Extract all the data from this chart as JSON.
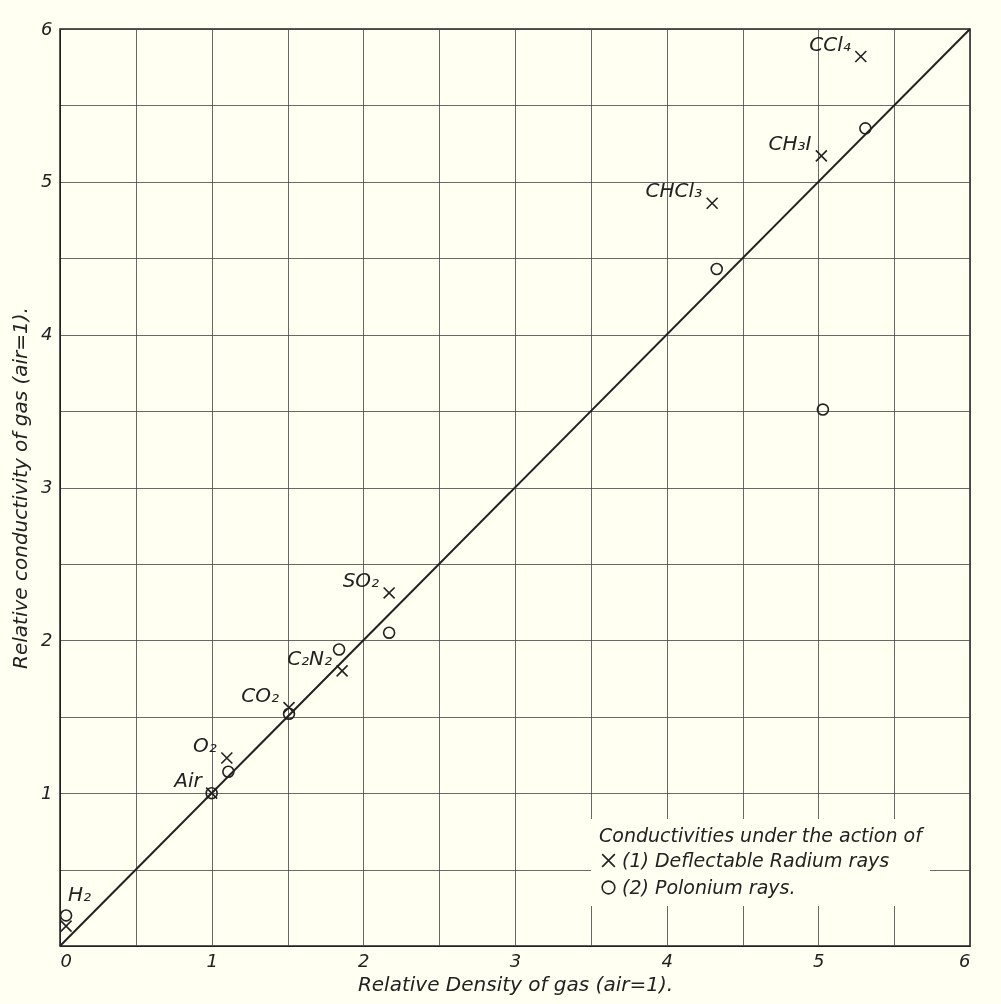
{
  "chart_data": {
    "type": "scatter",
    "xlabel": "Relative Density of gas (air=1).",
    "ylabel": "Relative conductivity of gas (air=1).",
    "legend_title": "Conductivities under the action of",
    "legend": "bottom right",
    "grid": true,
    "xlim": [
      0,
      6
    ],
    "ylim": [
      0,
      6
    ],
    "xticks": [
      0,
      {
        "value": 0.5,
        "label": null
      },
      1,
      {
        "value": 1.5,
        "label": null
      },
      2,
      {
        "value": 2.5,
        "label": null
      },
      3,
      {
        "value": 3.5,
        "label": null
      },
      4,
      {
        "value": 4.5,
        "label": null
      },
      5,
      {
        "value": 5.5,
        "label": null
      },
      6
    ],
    "yticks": [
      {
        "value": 0,
        "label": null
      },
      {
        "value": 0.5,
        "label": null
      },
      1,
      {
        "value": 1.5,
        "label": null
      },
      2,
      {
        "value": 2.5,
        "label": null
      },
      3,
      {
        "value": 3.5,
        "label": null
      },
      4,
      {
        "value": 4.5,
        "label": null
      },
      5,
      {
        "value": 5.5,
        "label": null
      },
      6
    ],
    "series": [
      {
        "name": "(1) Deflectable Radium rays",
        "type": "scatter",
        "marker": "cross",
        "color": "#222222",
        "x": [
          0.04,
          1,
          1.1,
          1.51,
          1.86,
          2.17,
          4.3,
          5.02,
          5.28
        ],
        "values": [
          0.13,
          1,
          1.23,
          1.56,
          1.8,
          2.31,
          4.86,
          5.17,
          5.82
        ]
      },
      {
        "name": "(2) Polonium rays.",
        "type": "scatter",
        "marker": "circle",
        "color": "#222222",
        "x": [
          0.04,
          1,
          1.11,
          1.51,
          1.84,
          2.17,
          4.33,
          5.03,
          5.31
        ],
        "values": [
          0.2,
          1,
          1.14,
          1.52,
          1.94,
          2.05,
          4.43,
          3.51,
          5.35
        ]
      },
      {
        "type": "line",
        "color": "#222222",
        "x": [
          0,
          6
        ],
        "values": [
          0,
          6
        ]
      }
    ],
    "annotations": [
      {
        "text": "H₂",
        "x": 0.04,
        "y": 0.2
      },
      {
        "text": "Air",
        "x": 1,
        "y": 1
      },
      {
        "text": "O₂",
        "x": 1.1,
        "y": 1.23
      },
      {
        "text": "CO₂",
        "x": 1.51,
        "y": 1.56
      },
      {
        "text": "C₂N₂",
        "x": 1.86,
        "y": 1.8
      },
      {
        "text": "SO₂",
        "x": 2.17,
        "y": 2.31
      },
      {
        "text": "CHCl₃",
        "x": 4.3,
        "y": 4.86
      },
      {
        "text": "CH₃I",
        "x": 5.02,
        "y": 5.17
      },
      {
        "text": "CCl₄",
        "x": 5.28,
        "y": 5.82
      }
    ]
  }
}
